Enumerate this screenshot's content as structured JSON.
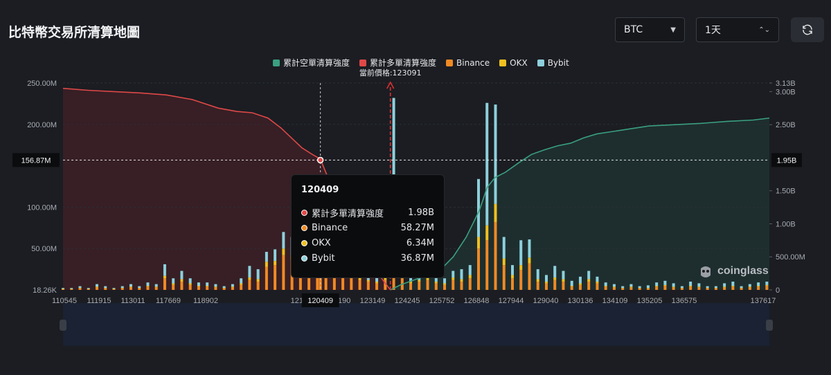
{
  "page": {
    "title": "比特幣交易所清算地圖"
  },
  "controls": {
    "coin": "BTC",
    "period": "1天"
  },
  "logo": {
    "text": "coinglass"
  },
  "tooltip": {
    "title": "120409",
    "rows": [
      {
        "name": "累計多單清算強度",
        "value": "1.98B",
        "color": "#e04848"
      },
      {
        "name": "Binance",
        "value": "58.27M",
        "color": "#f08a24"
      },
      {
        "name": "OKX",
        "value": "6.34M",
        "color": "#f0c020"
      },
      {
        "name": "Bybit",
        "value": "36.87M",
        "color": "#8dd0dc"
      }
    ]
  },
  "chart_data": {
    "type": "bar",
    "legend": [
      {
        "name": "累計空單清算強度",
        "color": "#3aa080"
      },
      {
        "name": "累計多單清算強度",
        "color": "#e04848"
      },
      {
        "name": "Binance",
        "color": "#f08a24"
      },
      {
        "name": "OKX",
        "color": "#f0c020"
      },
      {
        "name": "Bybit",
        "color": "#8dd0dc"
      }
    ],
    "legend_position": "top",
    "current_price_label": "當前價格:123091",
    "current_price": 123091,
    "crosshair": {
      "x_label": "120409",
      "y_left_label": "156.87M",
      "y_right_label": "1.95B"
    },
    "x_tick_labels": [
      "110545",
      "111915",
      "113011",
      "117669",
      "118902",
      "120409",
      "121094",
      "122190",
      "123149",
      "124245",
      "125752",
      "126848",
      "127944",
      "129040",
      "130136",
      "134109",
      "135205",
      "136575",
      "137617"
    ],
    "x_range": [
      110545,
      137617
    ],
    "y_left_ticks": [
      "250.00M",
      "200.00M",
      "100.00M",
      "50.00M",
      "18.26K"
    ],
    "y_left_range": [
      0,
      250
    ],
    "y_left_unit": "M",
    "y_right_ticks": [
      "3.13B",
      "3.00B",
      "2.50B",
      "1.95B",
      "1.50B",
      "1.00B",
      "500.00M",
      "0"
    ],
    "y_right_range": [
      0,
      3.13
    ],
    "y_right_unit": "B",
    "bars": {
      "x": [
        110545,
        110870,
        111195,
        111520,
        111845,
        112170,
        112495,
        112820,
        113145,
        113470,
        113795,
        114120,
        114445,
        114770,
        115095,
        115420,
        115745,
        116070,
        116395,
        116720,
        117045,
        117370,
        117695,
        118020,
        118345,
        118670,
        118995,
        119320,
        119645,
        119970,
        120295,
        120409,
        120620,
        120945,
        121270,
        121595,
        121920,
        122245,
        122570,
        122895,
        123220,
        123545,
        123870,
        124195,
        124520,
        124845,
        125170,
        125495,
        125820,
        126145,
        126470,
        126795,
        127120,
        127445,
        127770,
        128095,
        128420,
        128745,
        129070,
        129395,
        129720,
        130045,
        130370,
        130695,
        131020,
        131345,
        131670,
        131995,
        132320,
        132645,
        132970,
        133295,
        133620,
        133945,
        134270,
        134595,
        134920,
        135245,
        135570,
        135895,
        136220,
        136545,
        136870,
        137195,
        137520
      ],
      "binance": [
        1,
        1,
        2,
        1,
        3,
        2,
        1,
        2,
        3,
        2,
        4,
        3,
        14,
        6,
        10,
        6,
        4,
        4,
        3,
        2,
        3,
        6,
        12,
        10,
        28,
        30,
        42,
        36,
        56,
        38,
        48,
        58,
        50,
        24,
        16,
        14,
        12,
        10,
        8,
        12,
        52,
        14,
        8,
        10,
        12,
        8,
        6,
        12,
        10,
        14,
        50,
        60,
        82,
        30,
        14,
        24,
        32,
        10,
        8,
        12,
        10,
        4,
        6,
        10,
        8,
        4,
        3,
        2,
        3,
        2,
        2,
        4,
        5,
        3,
        2,
        4,
        3,
        2,
        2,
        3,
        4,
        2,
        3,
        4,
        5
      ],
      "okx": [
        0.3,
        0.3,
        0.5,
        0.3,
        1,
        0.5,
        0.3,
        0.5,
        1,
        0.5,
        1,
        1,
        3,
        2,
        3,
        2,
        1,
        1,
        1,
        0.5,
        1,
        2,
        3,
        3,
        6,
        5,
        8,
        6,
        10,
        8,
        10,
        6.3,
        10,
        5,
        4,
        3,
        3,
        2,
        2,
        3,
        10,
        3,
        2,
        2,
        3,
        2,
        2,
        3,
        3,
        4,
        14,
        18,
        22,
        8,
        4,
        6,
        7,
        3,
        2,
        3,
        3,
        1,
        2,
        3,
        2,
        1,
        1,
        0.5,
        1,
        0.5,
        0.5,
        1,
        1,
        1,
        0.5,
        1,
        1,
        0.5,
        0.5,
        1,
        1,
        0.5,
        1,
        1,
        1
      ],
      "bybit": [
        1,
        1,
        2,
        1,
        3,
        2,
        1,
        2,
        3,
        2,
        4,
        3,
        14,
        6,
        10,
        6,
        4,
        4,
        3,
        2,
        3,
        6,
        14,
        12,
        12,
        14,
        20,
        22,
        20,
        32,
        40,
        36.9,
        66,
        20,
        16,
        12,
        10,
        10,
        8,
        20,
        170,
        12,
        6,
        8,
        10,
        6,
        6,
        8,
        12,
        12,
        70,
        148,
        120,
        26,
        12,
        30,
        22,
        12,
        8,
        14,
        10,
        6,
        8,
        10,
        6,
        4,
        3,
        2,
        3,
        2,
        3,
        4,
        5,
        4,
        2,
        5,
        4,
        2,
        2,
        4,
        5,
        2,
        3,
        4,
        4
      ]
    },
    "long_cumulative": {
      "x": [
        110545,
        111500,
        112500,
        113500,
        114500,
        115500,
        116500,
        117200,
        117800,
        118400,
        118900,
        119300,
        119700,
        120100,
        120409,
        120800,
        121200,
        121600,
        122000,
        122400,
        122800,
        123091
      ],
      "values": [
        3.05,
        3.02,
        3.0,
        2.98,
        2.95,
        2.88,
        2.75,
        2.7,
        2.68,
        2.6,
        2.45,
        2.3,
        2.15,
        2.05,
        1.98,
        1.6,
        1.3,
        1.0,
        0.7,
        0.4,
        0.15,
        0
      ]
    },
    "short_cumulative": {
      "x": [
        123091,
        123500,
        124000,
        124500,
        125000,
        125500,
        126000,
        126500,
        126800,
        127100,
        127500,
        128000,
        128500,
        129000,
        129500,
        130000,
        130500,
        131000,
        132000,
        133000,
        134000,
        135000,
        136000,
        137000,
        137617
      ],
      "values": [
        0,
        0.08,
        0.15,
        0.22,
        0.3,
        0.5,
        0.8,
        1.2,
        1.55,
        1.7,
        1.78,
        1.92,
        2.05,
        2.12,
        2.18,
        2.22,
        2.3,
        2.36,
        2.42,
        2.48,
        2.5,
        2.52,
        2.55,
        2.57,
        2.6
      ]
    }
  }
}
